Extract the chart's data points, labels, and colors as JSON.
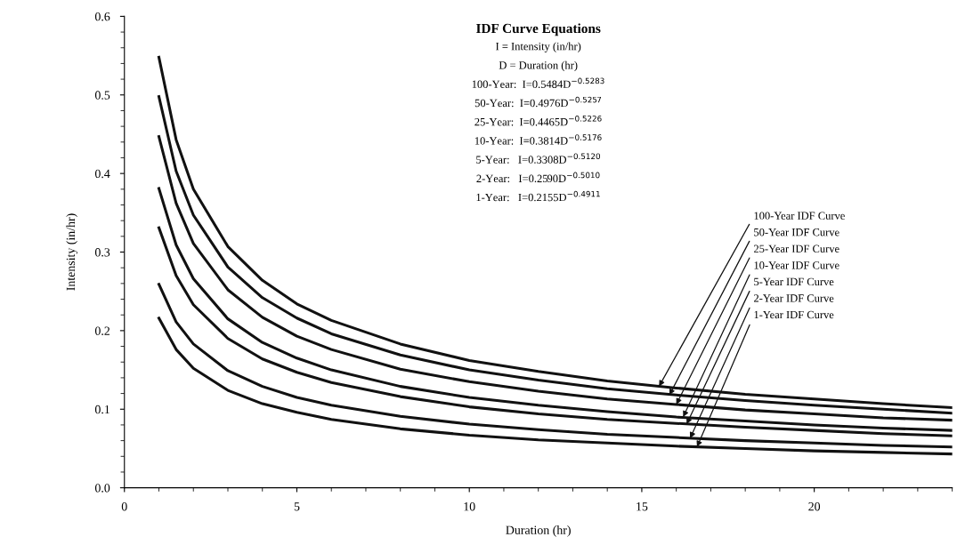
{
  "chart_data": {
    "type": "line",
    "title": "IDF Curve Equations",
    "xlabel": "Duration (hr)",
    "ylabel": "Intensity (in/hr)",
    "x": [
      1,
      1.5,
      2,
      3,
      4,
      5,
      6,
      8,
      10,
      12,
      14,
      16,
      18,
      20,
      22,
      24
    ],
    "series": [
      {
        "color": "#111111",
        "values": [
          0.548,
          0.443,
          0.38,
          0.307,
          0.264,
          0.234,
          0.213,
          0.183,
          0.162,
          0.148,
          0.136,
          0.127,
          0.119,
          0.113,
          0.107,
          0.102
        ]
      },
      {
        "color": "#111111",
        "values": [
          0.498,
          0.403,
          0.347,
          0.281,
          0.242,
          0.216,
          0.196,
          0.169,
          0.15,
          0.137,
          0.126,
          0.118,
          0.111,
          0.105,
          0.1,
          0.095
        ]
      },
      {
        "color": "#111111",
        "values": [
          0.447,
          0.362,
          0.311,
          0.252,
          0.217,
          0.193,
          0.176,
          0.151,
          0.135,
          0.123,
          0.113,
          0.106,
          0.099,
          0.094,
          0.089,
          0.086
        ]
      },
      {
        "color": "#111111",
        "values": [
          0.381,
          0.309,
          0.266,
          0.215,
          0.185,
          0.165,
          0.15,
          0.129,
          0.115,
          0.105,
          0.097,
          0.09,
          0.085,
          0.08,
          0.076,
          0.073
        ]
      },
      {
        "color": "#111111",
        "values": [
          0.331,
          0.27,
          0.233,
          0.19,
          0.164,
          0.147,
          0.134,
          0.116,
          0.103,
          0.094,
          0.087,
          0.082,
          0.077,
          0.073,
          0.069,
          0.066
        ]
      },
      {
        "color": "#111111",
        "values": [
          0.259,
          0.211,
          0.183,
          0.149,
          0.129,
          0.115,
          0.105,
          0.091,
          0.081,
          0.074,
          0.068,
          0.064,
          0.06,
          0.057,
          0.054,
          0.052
        ]
      },
      {
        "color": "#111111",
        "values": [
          0.216,
          0.176,
          0.152,
          0.124,
          0.107,
          0.096,
          0.087,
          0.075,
          0.067,
          0.061,
          0.057,
          0.053,
          0.05,
          0.047,
          0.045,
          0.043
        ]
      }
    ],
    "xlim": [
      0,
      24
    ],
    "xticks": [
      0,
      5,
      10,
      15,
      20
    ],
    "ylim": [
      0,
      0.6
    ],
    "yticks": [
      {
        "value": 0,
        "label": "0.0"
      },
      0.1,
      0.2,
      0.3,
      0.4,
      0.5,
      0.6
    ],
    "grid": false,
    "marker": "none",
    "line_style": "solid",
    "annotations": [
      "I = Intensity (in/hr)",
      "D = Duration (hr)",
      "100-Year:  I=0.5484D$^{−0.5283}$",
      "50-Year:  I=0.4976D$^{−0.5257}$",
      "25-Year:  I=0.4465D$^{−0.5226}$",
      "10-Year:  I=0.3814D$^{−0.5176}$",
      "5-Year:   I=0.3308D$^{−0.5120}$",
      "2-Year:   I=0.2590D$^{−0.5010}$",
      "1-Year:   I=0.2155D$^{−0.4911}$",
      {
        "text": "100-Year IDF Curve",
        "x": 15.5,
        "y": 0.129
      },
      {
        "text": "50-Year IDF Curve",
        "x": 15.8,
        "y": 0.118
      },
      {
        "text": "25-Year IDF Curve",
        "x": 16.0,
        "y": 0.106
      },
      {
        "text": "10-Year IDF Curve",
        "x": 16.2,
        "y": 0.09
      },
      {
        "text": "5-Year IDF Curve",
        "x": 16.3,
        "y": 0.081
      },
      {
        "text": "2-Year IDF Curve",
        "x": 16.4,
        "y": 0.063
      },
      {
        "text": "1-Year IDF Curve",
        "x": 16.6,
        "y": 0.052
      }
    ]
  }
}
